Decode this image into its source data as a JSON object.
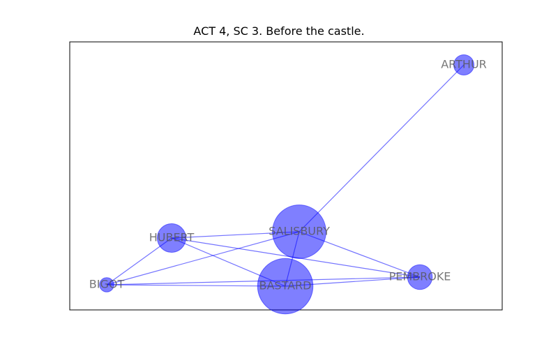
{
  "title": "ACT 4, SC 3. Before the castle.",
  "colors": {
    "node": "#0000ff",
    "edge": "#0000ff",
    "label": "#555555",
    "frame": "#000000"
  },
  "graph": {
    "nodes": [
      {
        "id": "ARTHUR",
        "label": "ARTHUR",
        "weight": 1
      },
      {
        "id": "SALISBURY",
        "label": "SALISBURY",
        "weight": 7
      },
      {
        "id": "HUBERT",
        "label": "HUBERT",
        "weight": 2
      },
      {
        "id": "PEMBROKE",
        "label": "PEMBROKE",
        "weight": 1.5
      },
      {
        "id": "BIGOT",
        "label": "BIGOT",
        "weight": 0.5
      },
      {
        "id": "BASTARD",
        "label": "BASTARD",
        "weight": 7.5
      }
    ],
    "edges": [
      [
        "ARTHUR",
        "SALISBURY"
      ],
      [
        "SALISBURY",
        "HUBERT"
      ],
      [
        "SALISBURY",
        "PEMBROKE"
      ],
      [
        "SALISBURY",
        "BIGOT"
      ],
      [
        "SALISBURY",
        "BASTARD"
      ],
      [
        "HUBERT",
        "BIGOT"
      ],
      [
        "HUBERT",
        "BASTARD"
      ],
      [
        "HUBERT",
        "PEMBROKE"
      ],
      [
        "BIGOT",
        "BASTARD"
      ],
      [
        "BIGOT",
        "PEMBROKE"
      ],
      [
        "BASTARD",
        "PEMBROKE"
      ]
    ]
  }
}
